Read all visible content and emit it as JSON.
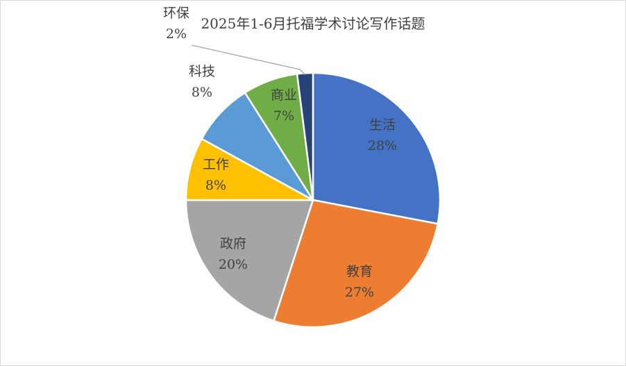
{
  "chart_data": {
    "type": "pie",
    "title": "2025年1-6月托福学术讨论写作话题",
    "categories": [
      "生活",
      "教育",
      "政府",
      "工作",
      "科技",
      "商业",
      "环保"
    ],
    "values": [
      28,
      27,
      20,
      8,
      8,
      7,
      2
    ],
    "labels": [
      "28%",
      "27%",
      "20%",
      "8%",
      "8%",
      "7%",
      "2%"
    ],
    "colors": [
      "#4472C4",
      "#ED7D31",
      "#A5A5A5",
      "#FFC000",
      "#5B9BD5",
      "#70AD47",
      "#264478"
    ],
    "legend": "none",
    "data_labels": "category and percent"
  }
}
